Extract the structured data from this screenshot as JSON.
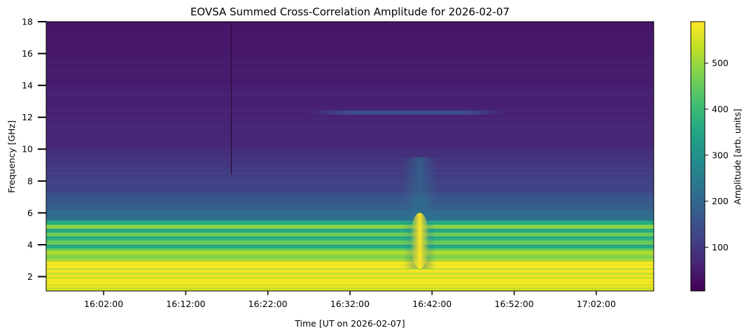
{
  "chart_data": {
    "type": "heatmap",
    "title": "EOVSA Summed Cross-Correlation Amplitude for 2026-02-07",
    "xlabel": "Time [UT on 2026-02-07]",
    "ylabel": "Frequency [GHz]",
    "colorbar_label": "Amplitude [arb. units]",
    "colormap": "viridis",
    "xlim": [
      "15:55:00",
      "17:09:00"
    ],
    "ylim": [
      1.1,
      18.0
    ],
    "clim": [
      5,
      590
    ],
    "x_ticks": [
      "16:02:00",
      "16:12:00",
      "16:22:00",
      "16:32:00",
      "16:42:00",
      "16:52:00",
      "17:02:00"
    ],
    "y_ticks": [
      "2",
      "4",
      "6",
      "8",
      "10",
      "12",
      "14",
      "16",
      "18"
    ],
    "colorbar_ticks": [
      "100",
      "200",
      "300",
      "400",
      "500"
    ],
    "features": [
      {
        "label": "flare burst",
        "time": "16:40:30",
        "freq_range": [
          2.5,
          6
        ],
        "peak_amplitude": 590
      },
      {
        "label": "12.3 GHz emission",
        "time_range": [
          "16:27:00",
          "16:51:00"
        ],
        "freq": 12.3,
        "amplitude": 130
      },
      {
        "label": "data gap",
        "time": "16:17:30",
        "freq_range": [
          8.4,
          18
        ]
      }
    ]
  }
}
